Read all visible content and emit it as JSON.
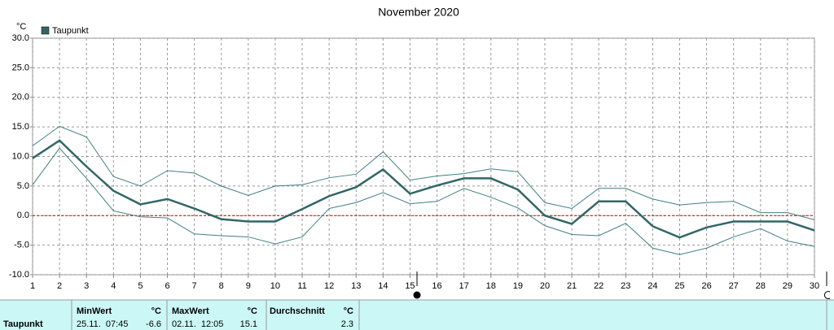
{
  "chart_data": {
    "type": "line",
    "title": "November 2020",
    "y_unit": "°C",
    "x": [
      1,
      2,
      3,
      4,
      5,
      6,
      7,
      8,
      9,
      10,
      11,
      12,
      13,
      14,
      15,
      16,
      17,
      18,
      19,
      20,
      21,
      22,
      23,
      24,
      25,
      26,
      27,
      28,
      29,
      30
    ],
    "xlim": [
      1,
      30
    ],
    "xticks": [
      1,
      2,
      3,
      4,
      5,
      6,
      7,
      8,
      9,
      10,
      11,
      12,
      13,
      14,
      15,
      16,
      17,
      18,
      19,
      20,
      21,
      22,
      23,
      24,
      25,
      26,
      27,
      28,
      29,
      30
    ],
    "ylim": [
      -10,
      30
    ],
    "yticks": [
      {
        "value": -10,
        "label": "-10.0"
      },
      {
        "value": -5,
        "label": "-5.0"
      },
      {
        "value": 0,
        "label": "0.0"
      },
      {
        "value": 5,
        "label": "5.0"
      },
      {
        "value": 10,
        "label": "10.0"
      },
      {
        "value": 15,
        "label": "15.0"
      },
      {
        "value": 20,
        "label": "20.0"
      },
      {
        "value": 25,
        "label": "25.0"
      },
      {
        "value": 30,
        "label": "30.0"
      }
    ],
    "grid": true,
    "reference_line": {
      "value": 0,
      "color": "#e00000"
    },
    "legend": "top-left",
    "series": [
      {
        "name": "Taupunkt",
        "color": "#336666",
        "values": [
          9.7,
          12.7,
          8.3,
          4.2,
          1.9,
          2.8,
          1.2,
          -0.6,
          -1.0,
          -1.0,
          1.1,
          3.3,
          4.8,
          7.8,
          3.7,
          5.1,
          6.3,
          6.3,
          4.4,
          0.0,
          -1.4,
          2.4,
          2.4,
          -1.8,
          -3.7,
          -2.0,
          -1.0,
          -1.0,
          -1.0,
          -2.5
        ]
      },
      {
        "color": "#3f7f7f",
        "values": [
          11.8,
          15.1,
          13.3,
          6.6,
          5.0,
          7.6,
          7.2,
          5.0,
          3.4,
          5.0,
          5.2,
          6.4,
          7.0,
          10.8,
          6.0,
          6.7,
          7.1,
          7.9,
          7.4,
          2.2,
          1.2,
          4.6,
          4.6,
          2.8,
          1.8,
          2.2,
          2.4,
          0.5,
          0.5,
          -0.7
        ]
      },
      {
        "color": "#3f7f7f",
        "values": [
          5.2,
          11.4,
          6.3,
          0.8,
          -0.2,
          -0.4,
          -3.1,
          -3.4,
          -3.6,
          -4.8,
          -3.6,
          1.2,
          2.2,
          3.9,
          2.0,
          2.4,
          4.6,
          3.1,
          1.3,
          -1.7,
          -3.2,
          -3.4,
          -1.3,
          -5.5,
          -6.6,
          -5.5,
          -3.6,
          -2.2,
          -4.3,
          -5.2
        ]
      }
    ]
  },
  "stats": {
    "row_label": "Taupunkt",
    "columns": [
      {
        "header": "MinWert",
        "unit": "°C",
        "time": "25.11.  07:45",
        "value": -6.6
      },
      {
        "header": "MaxWert",
        "unit": "°C",
        "time": "02.11.  12:05",
        "value": 15.1
      },
      {
        "header": "Durchschnitt",
        "unit": "°C",
        "value": 2.3
      }
    ]
  }
}
